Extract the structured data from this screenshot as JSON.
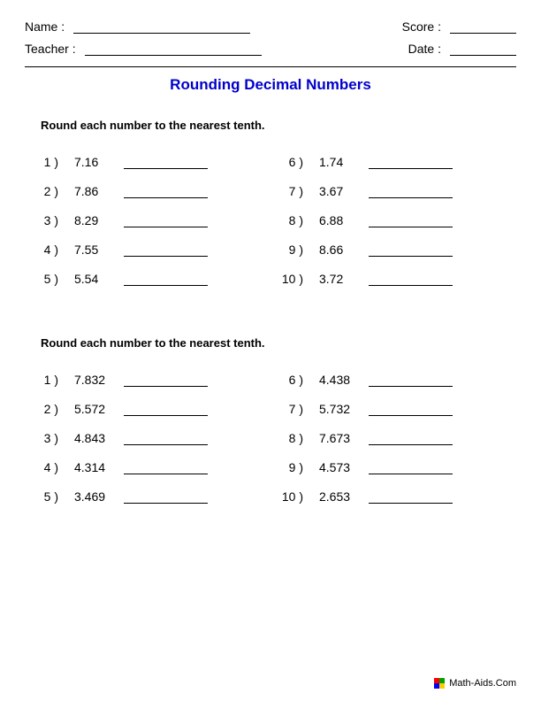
{
  "header": {
    "name_label": "Name :",
    "teacher_label": "Teacher :",
    "score_label": "Score :",
    "date_label": "Date :"
  },
  "title": "Rounding Decimal Numbers",
  "sections": [
    {
      "instruction": "Round each number to the nearest tenth.",
      "left": [
        {
          "num": "1 )",
          "val": "7.16"
        },
        {
          "num": "2 )",
          "val": "7.86"
        },
        {
          "num": "3 )",
          "val": "8.29"
        },
        {
          "num": "4 )",
          "val": "7.55"
        },
        {
          "num": "5 )",
          "val": "5.54"
        }
      ],
      "right": [
        {
          "num": "6 )",
          "val": "1.74"
        },
        {
          "num": "7 )",
          "val": "3.67"
        },
        {
          "num": "8 )",
          "val": "6.88"
        },
        {
          "num": "9 )",
          "val": "8.66"
        },
        {
          "num": "10 )",
          "val": "3.72"
        }
      ]
    },
    {
      "instruction": "Round each number to the nearest tenth.",
      "left": [
        {
          "num": "1 )",
          "val": "7.832"
        },
        {
          "num": "2 )",
          "val": "5.572"
        },
        {
          "num": "3 )",
          "val": "4.843"
        },
        {
          "num": "4 )",
          "val": "4.314"
        },
        {
          "num": "5 )",
          "val": "3.469"
        }
      ],
      "right": [
        {
          "num": "6 )",
          "val": "4.438"
        },
        {
          "num": "7 )",
          "val": "5.732"
        },
        {
          "num": "8 )",
          "val": "7.673"
        },
        {
          "num": "9 )",
          "val": "4.573"
        },
        {
          "num": "10 )",
          "val": "2.653"
        }
      ]
    }
  ],
  "footer": {
    "text": "Math-Aids.Com",
    "icon_colors": [
      "#ff0000",
      "#00a000",
      "#0000ff",
      "#ffcc00"
    ]
  },
  "styling": {
    "title_color": "#0000cc",
    "text_color": "#000000",
    "background": "#ffffff",
    "body_font_size_pt": 11,
    "title_font_size_pt": 13,
    "blank_line_color": "#000000"
  }
}
